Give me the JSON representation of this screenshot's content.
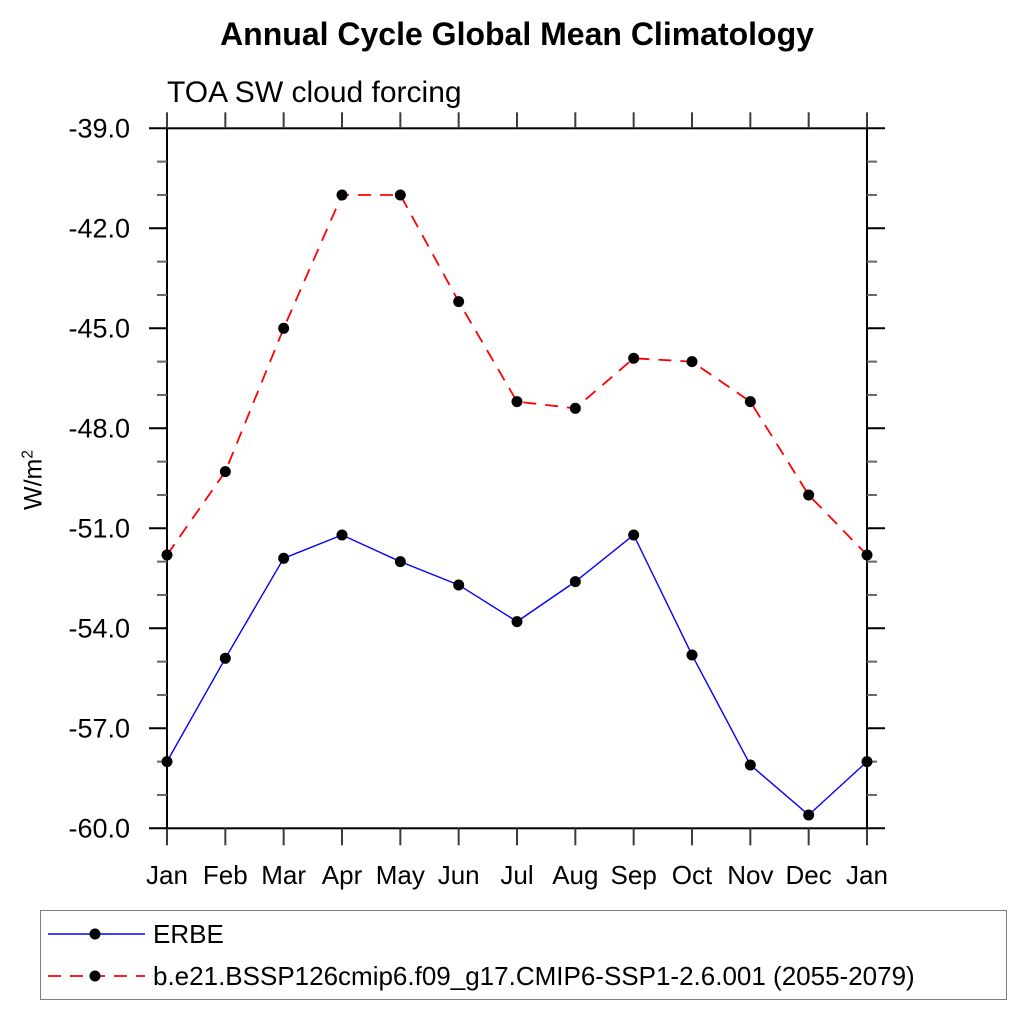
{
  "chart": {
    "title": "Annual Cycle Global Mean Climatology",
    "subtitle": "TOA SW cloud forcing",
    "ylabel_base": "W/m",
    "ylabel_exp": "2"
  },
  "chart_data": {
    "type": "line",
    "title": "Annual Cycle Global Mean Climatology",
    "subtitle": "TOA SW cloud forcing",
    "ylabel": "W/m²",
    "xlabel": "",
    "categories": [
      "Jan",
      "Feb",
      "Mar",
      "Apr",
      "May",
      "Jun",
      "Jul",
      "Aug",
      "Sep",
      "Oct",
      "Nov",
      "Dec",
      "Jan"
    ],
    "series": [
      {
        "name": "ERBE",
        "color": "#0000ff",
        "line_style": "solid",
        "line_width": 1.4,
        "marker": "filled-circle",
        "marker_color": "#000000",
        "values": [
          -58.0,
          -54.9,
          -51.9,
          -51.2,
          -52.0,
          -52.7,
          -53.8,
          -52.6,
          -51.2,
          -54.8,
          -58.1,
          -59.6,
          -58.0
        ]
      },
      {
        "name": "b.e21.BSSP126cmip6.f09_g17.CMIP6-SSP1-2.6.001 (2055-2079)",
        "color": "#ff0000",
        "line_style": "dashed",
        "line_width": 1.8,
        "marker": "filled-circle",
        "marker_color": "#000000",
        "values": [
          -51.8,
          -49.3,
          -45.0,
          -41.0,
          -41.0,
          -44.2,
          -47.2,
          -47.4,
          -45.9,
          -46.0,
          -47.2,
          -50.0,
          -51.8
        ]
      }
    ],
    "ylim": [
      -60,
      -39
    ],
    "yticks_major": [
      -39,
      -42,
      -45,
      -48,
      -51,
      -54,
      -57,
      -60
    ],
    "ytick_minor_step": 1,
    "ytick_format_decimals": 1,
    "grid": false,
    "frame": "box-with-outward-ticks",
    "legend_position": "bottom",
    "axis_color": "#000000",
    "minor_tick_color": "#666666"
  }
}
